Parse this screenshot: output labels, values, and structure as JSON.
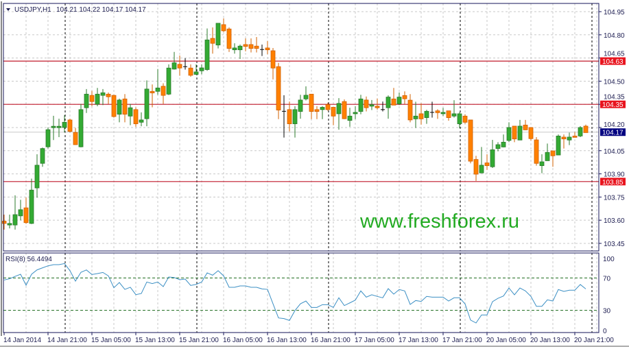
{
  "header": {
    "symbol": "USDJPY,H1",
    "ohlc": "104.21 104.22 104.17 104.17"
  },
  "watermark": "www.freshforex.ru",
  "colors": {
    "bull": "#33aa33",
    "bear": "#ff8000",
    "doji": "#000000",
    "level_line": "#c0182a",
    "level_box": "#e8141e",
    "price_box": "#000080",
    "rsi_line": "#3b8fc4",
    "rsi_levels": "#1a6a1a",
    "watermark": "#22aa22",
    "grid": "#c8c8c8",
    "day_separator": "#000000"
  },
  "chart_data": [
    {
      "type": "candlestick",
      "title": "USDJPY,H1",
      "price_ticks": [
        "104.95",
        "104.80",
        "104.65",
        "104.50",
        "104.35",
        "104.20",
        "104.05",
        "103.90",
        "103.75",
        "103.60",
        "103.45"
      ],
      "ylim": [
        103.45,
        104.95
      ],
      "grid": true,
      "time_labels": [
        "14 Jan 2014",
        "14 Jan 21:00",
        "15 Jan 05:00",
        "15 Jan 13:00",
        "15 Jan 21:00",
        "16 Jan 05:00",
        "16 Jan 13:00",
        "16 Jan 21:00",
        "17 Jan 05:00",
        "17 Jan 13:00",
        "17 Jan 21:00",
        "20 Jan 05:00",
        "20 Jan 13:00",
        "20 Jan 21:00"
      ],
      "horizontal_levels": [
        "104.63",
        "104.35",
        "103.85"
      ],
      "current_price": "104.17",
      "ohlc": [
        [
          103.594,
          103.636,
          103.539,
          103.579
        ],
        [
          103.569,
          103.636,
          103.547,
          103.579
        ],
        [
          103.569,
          103.761,
          103.539,
          103.636
        ],
        [
          103.628,
          103.732,
          103.599,
          103.668
        ],
        [
          103.68,
          103.746,
          103.576,
          103.584
        ],
        [
          103.579,
          103.869,
          103.575,
          103.795
        ],
        [
          103.809,
          104.027,
          103.746,
          103.956
        ],
        [
          103.968,
          104.07,
          103.946,
          104.064
        ],
        [
          104.075,
          104.2,
          104.064,
          104.186
        ],
        [
          104.199,
          104.276,
          104.119,
          104.208
        ],
        [
          104.199,
          104.257,
          104.138,
          104.208
        ],
        [
          104.2,
          104.279,
          104.168,
          104.234
        ],
        [
          104.249,
          104.257,
          104.168,
          104.175
        ],
        [
          104.168,
          104.197,
          104.087,
          104.089
        ],
        [
          104.075,
          104.353,
          104.072,
          104.316
        ],
        [
          104.328,
          104.449,
          104.294,
          104.416
        ],
        [
          104.408,
          104.437,
          104.338,
          104.368
        ],
        [
          104.351,
          104.456,
          104.338,
          104.416
        ],
        [
          104.408,
          104.449,
          104.345,
          104.425
        ],
        [
          104.416,
          104.427,
          104.353,
          104.399
        ],
        [
          104.408,
          104.412,
          104.264,
          104.271
        ],
        [
          104.286,
          104.387,
          104.234,
          104.378
        ],
        [
          104.385,
          104.416,
          104.234,
          104.286
        ],
        [
          104.274,
          104.353,
          104.215,
          104.328
        ],
        [
          104.316,
          104.331,
          104.205,
          104.224
        ],
        [
          104.234,
          104.298,
          104.208,
          104.249
        ],
        [
          104.257,
          104.505,
          104.208,
          104.449
        ],
        [
          104.434,
          104.479,
          104.331,
          104.424
        ],
        [
          104.434,
          104.579,
          104.412,
          104.456
        ],
        [
          104.467,
          104.486,
          104.353,
          104.408
        ],
        [
          104.416,
          104.609,
          104.41,
          104.585
        ],
        [
          104.578,
          104.689,
          104.575,
          104.619
        ],
        [
          104.609,
          104.666,
          104.535,
          104.585
        ],
        [
          104.594,
          104.649,
          104.575,
          104.594
        ],
        [
          104.585,
          104.609,
          104.529,
          104.538
        ],
        [
          104.544,
          104.609,
          104.541,
          104.56
        ],
        [
          104.567,
          104.609,
          104.545,
          104.586
        ],
        [
          104.575,
          104.841,
          104.567,
          104.767
        ],
        [
          104.777,
          104.848,
          104.678,
          104.745
        ],
        [
          104.734,
          104.875,
          104.712,
          104.875
        ],
        [
          104.866,
          104.907,
          104.818,
          104.826
        ],
        [
          104.838,
          104.848,
          104.689,
          104.712
        ],
        [
          104.703,
          104.745,
          104.678,
          104.715
        ],
        [
          104.703,
          104.737,
          104.644,
          104.727
        ],
        [
          104.737,
          104.777,
          104.693,
          104.725
        ],
        [
          104.737,
          104.777,
          104.686,
          104.712
        ],
        [
          104.727,
          104.786,
          104.686,
          104.712
        ],
        [
          104.705,
          104.737,
          104.663,
          104.705
        ],
        [
          104.715,
          104.759,
          104.674,
          104.703
        ],
        [
          104.697,
          104.715,
          104.511,
          104.585
        ],
        [
          104.594,
          104.619,
          104.254,
          104.313
        ],
        [
          104.305,
          104.409,
          104.135,
          104.305
        ],
        [
          104.316,
          104.368,
          104.175,
          104.224
        ],
        [
          104.224,
          104.338,
          104.135,
          104.316
        ],
        [
          104.304,
          104.412,
          104.257,
          104.378
        ],
        [
          104.385,
          104.467,
          104.375,
          104.409
        ],
        [
          104.416,
          104.416,
          104.254,
          104.304
        ],
        [
          104.316,
          104.338,
          104.254,
          104.304
        ],
        [
          104.316,
          104.338,
          104.254,
          104.331
        ],
        [
          104.348,
          104.36,
          104.308,
          104.316
        ],
        [
          104.331,
          104.331,
          104.215,
          104.274
        ],
        [
          104.289,
          104.39,
          104.186,
          104.356
        ],
        [
          104.368,
          104.382,
          104.254,
          104.257
        ],
        [
          104.246,
          104.328,
          104.205,
          104.274
        ],
        [
          104.289,
          104.338,
          104.254,
          104.298
        ],
        [
          104.304,
          104.412,
          104.286,
          104.385
        ],
        [
          104.378,
          104.401,
          104.304,
          104.328
        ],
        [
          104.338,
          104.378,
          104.313,
          104.348
        ],
        [
          104.338,
          104.387,
          104.316,
          104.328
        ],
        [
          104.316,
          104.368,
          104.304,
          104.316
        ],
        [
          104.328,
          104.408,
          104.257,
          104.397
        ],
        [
          104.385,
          104.456,
          104.345,
          104.345
        ],
        [
          104.353,
          104.427,
          104.345,
          104.397
        ],
        [
          104.407,
          104.434,
          104.352,
          104.386
        ],
        [
          104.377,
          104.416,
          104.234,
          104.249
        ],
        [
          104.256,
          104.367,
          104.197,
          104.274
        ],
        [
          104.289,
          104.357,
          104.219,
          104.256
        ],
        [
          104.264,
          104.315,
          104.224,
          104.305
        ],
        [
          104.298,
          104.367,
          104.264,
          104.298
        ],
        [
          104.308,
          104.318,
          104.256,
          104.296
        ],
        [
          104.289,
          104.327,
          104.274,
          104.298
        ],
        [
          104.308,
          104.308,
          104.244,
          104.264
        ],
        [
          104.274,
          104.377,
          104.264,
          104.289
        ],
        [
          104.224,
          104.3,
          104.197,
          104.289
        ],
        [
          104.274,
          104.286,
          104.224,
          104.234
        ],
        [
          104.249,
          104.249,
          103.968,
          103.982
        ],
        [
          103.993,
          104.017,
          103.854,
          103.898
        ],
        [
          103.906,
          104.074,
          103.906,
          103.956
        ],
        [
          103.971,
          104.027,
          103.926,
          103.953
        ],
        [
          103.946,
          104.12,
          103.938,
          104.056
        ],
        [
          104.064,
          104.105,
          104.046,
          104.089
        ],
        [
          104.074,
          104.155,
          104.072,
          104.105
        ],
        [
          104.116,
          104.234,
          104.105,
          104.2
        ],
        [
          104.209,
          104.209,
          104.105,
          104.126
        ],
        [
          104.119,
          104.249,
          104.119,
          104.209
        ],
        [
          104.216,
          104.249,
          104.183,
          104.185
        ],
        [
          104.2,
          104.2,
          104.116,
          104.128
        ],
        [
          104.12,
          104.138,
          103.953,
          103.968
        ],
        [
          103.953,
          104.027,
          103.904,
          103.978
        ],
        [
          103.985,
          104.096,
          103.985,
          104.039
        ],
        [
          104.049,
          104.049,
          103.946,
          104.017
        ],
        [
          104.022,
          104.155,
          104.02,
          104.145
        ],
        [
          104.138,
          104.155,
          104.064,
          104.126
        ],
        [
          104.119,
          104.167,
          104.086,
          104.138
        ],
        [
          104.145,
          104.17,
          104.138,
          104.138
        ],
        [
          104.145,
          104.209,
          104.138,
          104.2
        ],
        [
          104.209,
          104.219,
          104.167,
          104.167
        ]
      ]
    },
    {
      "type": "line",
      "title": "RSI(8) 56.4494",
      "y_ticks": [
        "100",
        "70",
        "30",
        "0"
      ],
      "ylim": [
        0,
        100
      ],
      "levels": [
        70,
        30
      ],
      "values": [
        67.5,
        69,
        72,
        74.6,
        61,
        74.6,
        80,
        82.5,
        85,
        86.4,
        86.4,
        87.8,
        79,
        66.1,
        77,
        79.9,
        74.3,
        75.4,
        76.8,
        72.6,
        57.9,
        64.4,
        55.9,
        58.5,
        49.4,
        50.8,
        65,
        63,
        65,
        59.3,
        71.2,
        70.6,
        67.8,
        68.6,
        60.7,
        62.1,
        65,
        76.3,
        73.4,
        79,
        72.6,
        58.5,
        58.5,
        60.2,
        60.2,
        58.5,
        58.5,
        56.5,
        55.9,
        38.1,
        20.6,
        19.8,
        17.5,
        29.7,
        38.1,
        41.5,
        33.6,
        33.6,
        37,
        37,
        33.6,
        45.5,
        35.9,
        39.2,
        42.6,
        54,
        46.3,
        49.2,
        47.2,
        45.5,
        56.8,
        50,
        55.7,
        54,
        37.3,
        42.1,
        41,
        47.2,
        46.3,
        46.3,
        46.3,
        41.5,
        45.5,
        45.5,
        37.9,
        18,
        14.4,
        24.3,
        24.3,
        40.7,
        44.9,
        47.7,
        57.6,
        49.2,
        57.6,
        54,
        47.2,
        35,
        35,
        43,
        41.5,
        55.7,
        53.4,
        54.9,
        54.9,
        61.9,
        56.4494
      ]
    }
  ]
}
